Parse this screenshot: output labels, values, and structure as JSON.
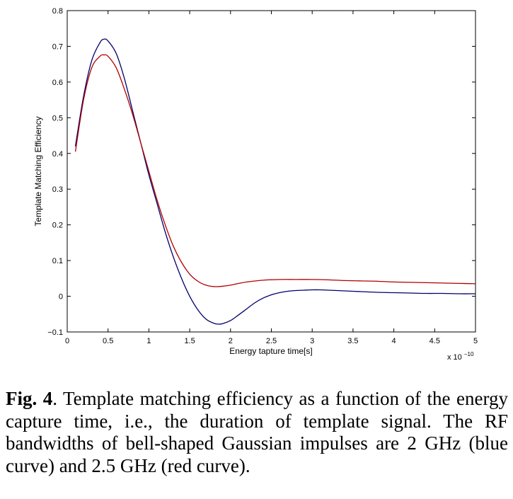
{
  "chart_data": {
    "type": "line",
    "title": "",
    "xlabel": "Energy tapture time[s]",
    "ylabel": "Template Matching Efficiency",
    "x_multiplier_label": "x 10",
    "x_multiplier_exponent": "−10",
    "xlim": [
      0,
      5
    ],
    "ylim": [
      -0.1,
      0.8
    ],
    "xticks": [
      0,
      0.5,
      1,
      1.5,
      2,
      2.5,
      3,
      3.5,
      4,
      4.5,
      5
    ],
    "xtick_labels": [
      "0",
      "0.5",
      "1",
      "1.5",
      "2",
      "2.5",
      "3",
      "3.5",
      "4",
      "4.5",
      "5"
    ],
    "yticks": [
      -0.1,
      0,
      0.1,
      0.2,
      0.3,
      0.4,
      0.5,
      0.6,
      0.7,
      0.8
    ],
    "ytick_labels": [
      "−0.1",
      "0",
      "0.1",
      "0.2",
      "0.3",
      "0.4",
      "0.5",
      "0.6",
      "0.7",
      "0.8"
    ],
    "grid": false,
    "series": [
      {
        "color": "#00006e",
        "x": [
          0.1,
          0.2,
          0.3,
          0.4,
          0.45,
          0.5,
          0.6,
          0.7,
          0.8,
          0.9,
          1.0,
          1.1,
          1.2,
          1.3,
          1.4,
          1.5,
          1.6,
          1.7,
          1.8,
          1.85,
          1.9,
          2.0,
          2.1,
          2.2,
          2.3,
          2.4,
          2.5,
          2.6,
          2.7,
          2.8,
          2.9,
          3.0,
          3.1,
          3.2,
          3.4,
          3.6,
          3.8,
          4.0,
          4.2,
          4.4,
          4.6,
          4.8,
          5.0
        ],
        "y": [
          0.42,
          0.56,
          0.66,
          0.71,
          0.72,
          0.715,
          0.68,
          0.61,
          0.52,
          0.43,
          0.34,
          0.26,
          0.18,
          0.11,
          0.05,
          0.0,
          -0.038,
          -0.064,
          -0.076,
          -0.078,
          -0.077,
          -0.068,
          -0.052,
          -0.035,
          -0.018,
          -0.005,
          0.004,
          0.01,
          0.014,
          0.016,
          0.017,
          0.018,
          0.018,
          0.017,
          0.015,
          0.013,
          0.011,
          0.01,
          0.009,
          0.008,
          0.008,
          0.007,
          0.007
        ]
      },
      {
        "color": "#b00000",
        "x": [
          0.1,
          0.2,
          0.3,
          0.4,
          0.45,
          0.5,
          0.6,
          0.7,
          0.8,
          0.9,
          1.0,
          1.1,
          1.2,
          1.3,
          1.4,
          1.5,
          1.6,
          1.7,
          1.8,
          1.9,
          2.0,
          2.1,
          2.2,
          2.4,
          2.6,
          2.8,
          3.0,
          3.2,
          3.4,
          3.6,
          3.8,
          4.0,
          4.2,
          4.4,
          4.6,
          4.8,
          5.0
        ],
        "y": [
          0.405,
          0.55,
          0.64,
          0.672,
          0.676,
          0.672,
          0.64,
          0.58,
          0.51,
          0.43,
          0.35,
          0.27,
          0.2,
          0.14,
          0.095,
          0.062,
          0.042,
          0.031,
          0.027,
          0.028,
          0.031,
          0.036,
          0.04,
          0.045,
          0.047,
          0.047,
          0.047,
          0.046,
          0.044,
          0.043,
          0.042,
          0.04,
          0.039,
          0.038,
          0.037,
          0.036,
          0.035
        ]
      }
    ]
  },
  "caption": {
    "label": "Fig. 4",
    "text": ".  Template matching efficiency as a function of the energy capture time, i.e., the duration of template signal. The RF bandwidths of bell-shaped Gaussian impulses are 2 GHz (blue curve) and 2.5 GHz (red curve)."
  }
}
